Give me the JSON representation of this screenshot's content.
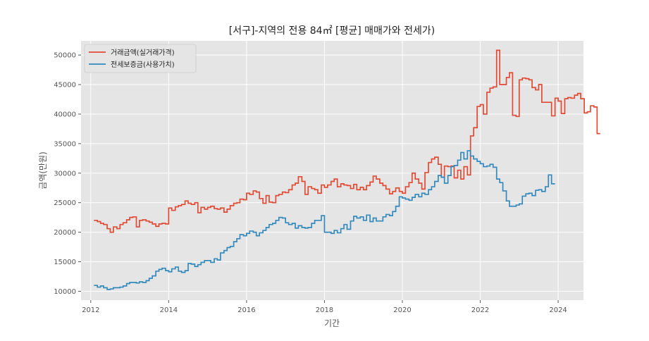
{
  "chart_data": {
    "type": "line",
    "title": "[서구]-지역의 전용 84㎡ [평균] 매매가와 전세가)",
    "xlabel": "기간",
    "ylabel": "금액(만원)",
    "xlim": [
      2011.75,
      2024.65
    ],
    "ylim": [
      8500,
      52400
    ],
    "x_ticks": [
      2012,
      2014,
      2016,
      2018,
      2020,
      2022,
      2024
    ],
    "y_ticks": [
      10000,
      15000,
      20000,
      25000,
      30000,
      35000,
      40000,
      45000,
      50000
    ],
    "grid": true,
    "legend_position": "top-left",
    "step": "post",
    "series": [
      {
        "name": "거래금액(실거래가격)",
        "color": "#E24A33",
        "points": [
          [
            2012.08,
            22000
          ],
          [
            2012.17,
            21800
          ],
          [
            2012.25,
            21500
          ],
          [
            2012.33,
            21300
          ],
          [
            2012.42,
            20600
          ],
          [
            2012.5,
            20000
          ],
          [
            2012.58,
            20900
          ],
          [
            2012.67,
            20600
          ],
          [
            2012.75,
            21300
          ],
          [
            2012.83,
            21600
          ],
          [
            2012.92,
            22100
          ],
          [
            2013.0,
            22500
          ],
          [
            2013.08,
            22600
          ],
          [
            2013.17,
            20900
          ],
          [
            2013.25,
            22000
          ],
          [
            2013.33,
            22100
          ],
          [
            2013.42,
            21900
          ],
          [
            2013.5,
            21700
          ],
          [
            2013.58,
            21400
          ],
          [
            2013.67,
            21000
          ],
          [
            2013.75,
            21400
          ],
          [
            2013.83,
            21500
          ],
          [
            2013.92,
            21400
          ],
          [
            2014.0,
            24100
          ],
          [
            2014.08,
            23700
          ],
          [
            2014.17,
            24300
          ],
          [
            2014.25,
            24500
          ],
          [
            2014.33,
            24700
          ],
          [
            2014.42,
            25300
          ],
          [
            2014.5,
            24900
          ],
          [
            2014.58,
            24700
          ],
          [
            2014.67,
            25000
          ],
          [
            2014.75,
            23300
          ],
          [
            2014.83,
            24200
          ],
          [
            2014.92,
            23900
          ],
          [
            2015.0,
            24200
          ],
          [
            2015.08,
            24400
          ],
          [
            2015.17,
            24000
          ],
          [
            2015.25,
            23900
          ],
          [
            2015.33,
            24100
          ],
          [
            2015.42,
            23400
          ],
          [
            2015.5,
            23900
          ],
          [
            2015.58,
            24500
          ],
          [
            2015.67,
            24900
          ],
          [
            2015.75,
            25000
          ],
          [
            2015.83,
            25600
          ],
          [
            2015.92,
            25500
          ],
          [
            2016.0,
            26600
          ],
          [
            2016.08,
            26400
          ],
          [
            2016.17,
            27000
          ],
          [
            2016.25,
            26800
          ],
          [
            2016.33,
            25700
          ],
          [
            2016.42,
            24900
          ],
          [
            2016.5,
            26200
          ],
          [
            2016.58,
            25100
          ],
          [
            2016.67,
            25000
          ],
          [
            2016.75,
            26200
          ],
          [
            2016.83,
            26400
          ],
          [
            2016.92,
            26800
          ],
          [
            2017.0,
            26700
          ],
          [
            2017.08,
            27200
          ],
          [
            2017.17,
            28000
          ],
          [
            2017.25,
            28300
          ],
          [
            2017.33,
            29400
          ],
          [
            2017.42,
            28600
          ],
          [
            2017.5,
            26400
          ],
          [
            2017.58,
            27700
          ],
          [
            2017.67,
            27400
          ],
          [
            2017.75,
            27200
          ],
          [
            2017.83,
            26600
          ],
          [
            2017.92,
            28000
          ],
          [
            2018.0,
            27600
          ],
          [
            2018.08,
            28000
          ],
          [
            2018.17,
            28600
          ],
          [
            2018.25,
            29000
          ],
          [
            2018.33,
            27700
          ],
          [
            2018.42,
            28200
          ],
          [
            2018.5,
            28000
          ],
          [
            2018.58,
            27900
          ],
          [
            2018.67,
            27400
          ],
          [
            2018.75,
            28100
          ],
          [
            2018.83,
            27200
          ],
          [
            2018.92,
            27600
          ],
          [
            2019.0,
            27200
          ],
          [
            2019.08,
            27900
          ],
          [
            2019.17,
            28500
          ],
          [
            2019.25,
            29500
          ],
          [
            2019.33,
            29000
          ],
          [
            2019.42,
            28300
          ],
          [
            2019.5,
            27900
          ],
          [
            2019.58,
            27300
          ],
          [
            2019.67,
            26500
          ],
          [
            2019.75,
            26900
          ],
          [
            2019.83,
            27500
          ],
          [
            2019.92,
            26900
          ],
          [
            2020.0,
            26600
          ],
          [
            2020.08,
            27700
          ],
          [
            2020.17,
            28400
          ],
          [
            2020.25,
            30000
          ],
          [
            2020.33,
            29000
          ],
          [
            2020.42,
            28300
          ],
          [
            2020.5,
            27300
          ],
          [
            2020.58,
            30100
          ],
          [
            2020.67,
            31800
          ],
          [
            2020.75,
            32400
          ],
          [
            2020.83,
            32700
          ],
          [
            2020.92,
            31500
          ],
          [
            2021.0,
            29300
          ],
          [
            2021.08,
            31200
          ],
          [
            2021.17,
            31100
          ],
          [
            2021.25,
            31200
          ],
          [
            2021.33,
            29200
          ],
          [
            2021.42,
            30500
          ],
          [
            2021.5,
            29000
          ],
          [
            2021.58,
            31100
          ],
          [
            2021.67,
            29700
          ],
          [
            2021.75,
            36300
          ],
          [
            2021.83,
            37700
          ],
          [
            2021.92,
            41300
          ],
          [
            2022.0,
            41600
          ],
          [
            2022.08,
            40000
          ],
          [
            2022.17,
            43700
          ],
          [
            2022.25,
            44400
          ],
          [
            2022.33,
            44600
          ],
          [
            2022.42,
            50800
          ],
          [
            2022.5,
            45000
          ],
          [
            2022.58,
            45000
          ],
          [
            2022.67,
            46200
          ],
          [
            2022.75,
            47000
          ],
          [
            2022.83,
            39800
          ],
          [
            2022.92,
            39600
          ],
          [
            2023.0,
            45800
          ],
          [
            2023.08,
            46100
          ],
          [
            2023.17,
            46000
          ],
          [
            2023.25,
            45800
          ],
          [
            2023.33,
            44500
          ],
          [
            2023.42,
            44100
          ],
          [
            2023.5,
            45000
          ],
          [
            2023.58,
            42000
          ],
          [
            2023.67,
            42000
          ],
          [
            2023.75,
            42000
          ],
          [
            2023.83,
            39700
          ],
          [
            2023.92,
            42700
          ],
          [
            2024.0,
            42200
          ],
          [
            2024.08,
            40100
          ],
          [
            2024.17,
            42600
          ],
          [
            2024.25,
            42800
          ],
          [
            2024.33,
            42700
          ],
          [
            2024.42,
            43200
          ],
          [
            2024.5,
            43500
          ],
          [
            2024.58,
            42600
          ],
          [
            2024.67,
            40200
          ],
          [
            2024.75,
            40400
          ],
          [
            2024.83,
            41400
          ],
          [
            2024.92,
            41200
          ],
          [
            2025.0,
            36700
          ],
          [
            2025.08,
            36700
          ]
        ]
      },
      {
        "name": "전세보증금(사용가치)",
        "color": "#348ABD",
        "points": [
          [
            2012.08,
            11000
          ],
          [
            2012.17,
            10700
          ],
          [
            2012.25,
            10900
          ],
          [
            2012.33,
            10600
          ],
          [
            2012.42,
            10300
          ],
          [
            2012.5,
            10400
          ],
          [
            2012.58,
            10600
          ],
          [
            2012.67,
            10600
          ],
          [
            2012.75,
            10700
          ],
          [
            2012.83,
            10900
          ],
          [
            2012.92,
            11300
          ],
          [
            2013.0,
            11500
          ],
          [
            2013.08,
            11500
          ],
          [
            2013.17,
            11400
          ],
          [
            2013.25,
            11600
          ],
          [
            2013.33,
            11500
          ],
          [
            2013.42,
            11800
          ],
          [
            2013.5,
            12200
          ],
          [
            2013.58,
            12600
          ],
          [
            2013.67,
            13400
          ],
          [
            2013.75,
            13700
          ],
          [
            2013.83,
            13900
          ],
          [
            2013.92,
            13500
          ],
          [
            2014.0,
            13300
          ],
          [
            2014.08,
            13800
          ],
          [
            2014.17,
            14100
          ],
          [
            2014.25,
            13400
          ],
          [
            2014.33,
            13200
          ],
          [
            2014.42,
            13500
          ],
          [
            2014.5,
            14700
          ],
          [
            2014.58,
            14600
          ],
          [
            2014.67,
            14200
          ],
          [
            2014.75,
            14500
          ],
          [
            2014.83,
            14900
          ],
          [
            2014.92,
            15200
          ],
          [
            2015.0,
            15200
          ],
          [
            2015.08,
            14900
          ],
          [
            2015.17,
            15500
          ],
          [
            2015.25,
            15300
          ],
          [
            2015.33,
            16500
          ],
          [
            2015.42,
            16900
          ],
          [
            2015.5,
            17400
          ],
          [
            2015.58,
            17600
          ],
          [
            2015.67,
            18400
          ],
          [
            2015.75,
            18900
          ],
          [
            2015.83,
            19600
          ],
          [
            2015.92,
            19400
          ],
          [
            2016.0,
            19800
          ],
          [
            2016.08,
            20200
          ],
          [
            2016.17,
            20000
          ],
          [
            2016.25,
            19400
          ],
          [
            2016.33,
            19900
          ],
          [
            2016.42,
            20300
          ],
          [
            2016.5,
            20800
          ],
          [
            2016.58,
            21300
          ],
          [
            2016.67,
            21500
          ],
          [
            2016.75,
            22000
          ],
          [
            2016.83,
            22500
          ],
          [
            2016.92,
            22400
          ],
          [
            2017.0,
            21600
          ],
          [
            2017.08,
            21300
          ],
          [
            2017.17,
            21500
          ],
          [
            2017.25,
            20700
          ],
          [
            2017.33,
            21100
          ],
          [
            2017.42,
            20800
          ],
          [
            2017.5,
            20700
          ],
          [
            2017.58,
            20800
          ],
          [
            2017.67,
            21500
          ],
          [
            2017.75,
            22000
          ],
          [
            2017.83,
            22000
          ],
          [
            2017.92,
            22800
          ],
          [
            2018.0,
            20000
          ],
          [
            2018.08,
            20000
          ],
          [
            2018.17,
            19800
          ],
          [
            2018.25,
            20300
          ],
          [
            2018.33,
            19900
          ],
          [
            2018.42,
            20600
          ],
          [
            2018.5,
            21300
          ],
          [
            2018.58,
            20500
          ],
          [
            2018.67,
            21900
          ],
          [
            2018.75,
            22700
          ],
          [
            2018.83,
            22400
          ],
          [
            2018.92,
            22600
          ],
          [
            2019.0,
            22000
          ],
          [
            2019.08,
            22900
          ],
          [
            2019.17,
            21800
          ],
          [
            2019.25,
            22400
          ],
          [
            2019.33,
            21900
          ],
          [
            2019.42,
            21900
          ],
          [
            2019.5,
            22600
          ],
          [
            2019.58,
            23000
          ],
          [
            2019.67,
            22800
          ],
          [
            2019.75,
            23500
          ],
          [
            2019.83,
            24400
          ],
          [
            2019.92,
            26000
          ],
          [
            2020.0,
            25800
          ],
          [
            2020.08,
            25600
          ],
          [
            2020.17,
            25400
          ],
          [
            2020.25,
            25900
          ],
          [
            2020.33,
            26400
          ],
          [
            2020.42,
            26000
          ],
          [
            2020.5,
            26600
          ],
          [
            2020.58,
            26400
          ],
          [
            2020.67,
            27200
          ],
          [
            2020.75,
            27700
          ],
          [
            2020.83,
            28600
          ],
          [
            2020.92,
            29600
          ],
          [
            2021.0,
            29300
          ],
          [
            2021.08,
            28300
          ],
          [
            2021.17,
            29600
          ],
          [
            2021.25,
            31100
          ],
          [
            2021.33,
            31300
          ],
          [
            2021.42,
            32200
          ],
          [
            2021.5,
            33500
          ],
          [
            2021.58,
            32400
          ],
          [
            2021.67,
            33800
          ],
          [
            2021.75,
            32900
          ],
          [
            2021.83,
            32400
          ],
          [
            2021.92,
            32000
          ],
          [
            2022.0,
            31600
          ],
          [
            2022.08,
            31100
          ],
          [
            2022.17,
            31200
          ],
          [
            2022.25,
            31500
          ],
          [
            2022.33,
            31000
          ],
          [
            2022.42,
            29000
          ],
          [
            2022.5,
            28400
          ],
          [
            2022.58,
            27000
          ],
          [
            2022.67,
            25300
          ],
          [
            2022.75,
            24400
          ],
          [
            2022.83,
            24400
          ],
          [
            2022.92,
            24600
          ],
          [
            2023.0,
            24800
          ],
          [
            2023.08,
            26100
          ],
          [
            2023.17,
            26500
          ],
          [
            2023.25,
            26600
          ],
          [
            2023.33,
            26200
          ],
          [
            2023.42,
            27100
          ],
          [
            2023.5,
            27200
          ],
          [
            2023.58,
            26900
          ],
          [
            2023.67,
            27700
          ],
          [
            2023.75,
            29700
          ],
          [
            2023.83,
            28200
          ],
          [
            2023.92,
            28200
          ]
        ]
      }
    ]
  }
}
